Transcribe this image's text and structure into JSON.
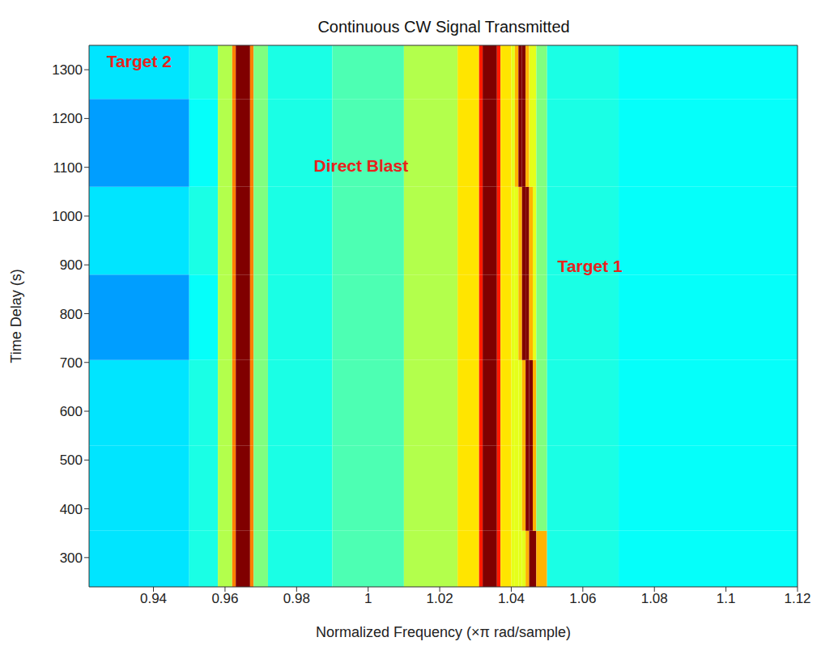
{
  "chart_data": {
    "type": "heatmap",
    "title": "Continuous CW Signal Transmitted",
    "x_label": "Normalized Frequency  (×π rad/sample)",
    "y_label": "Time Delay (s)",
    "xlim": [
      0.922,
      1.12
    ],
    "xticks": [
      0.94,
      0.96,
      0.98,
      1,
      1.02,
      1.04,
      1.06,
      1.08,
      1.1,
      1.12
    ],
    "ylim": [
      240,
      1350
    ],
    "yticks": [
      300,
      400,
      500,
      600,
      700,
      800,
      900,
      1000,
      1100,
      1200,
      1300
    ],
    "grid": false,
    "x_edges": [
      0.922,
      0.95,
      0.958,
      0.962,
      0.963,
      0.967,
      0.968,
      0.972,
      0.99,
      1.01,
      1.025,
      1.031,
      1.032,
      1.036,
      1.037,
      1.04,
      1.041,
      1.042,
      1.043,
      1.044,
      1.045,
      1.046,
      1.047,
      1.05,
      1.07,
      1.12
    ],
    "y_edges": [
      240,
      355,
      530,
      705,
      880,
      1060,
      1240,
      1350
    ],
    "clim": [
      0,
      1
    ],
    "cells": [
      [
        0.35,
        0.4,
        0.55,
        0.75,
        1,
        0.75,
        0.5,
        0.4,
        0.45,
        0.55,
        0.65,
        0.85,
        1,
        0.85,
        0.65,
        0.6,
        0.6,
        0.6,
        0.6,
        0.7,
        1,
        1,
        0.7,
        0.4,
        0.38
      ],
      [
        0.35,
        0.4,
        0.55,
        0.75,
        1,
        0.75,
        0.5,
        0.4,
        0.45,
        0.55,
        0.65,
        0.85,
        1,
        0.85,
        0.65,
        0.6,
        0.6,
        0.6,
        0.7,
        1,
        1,
        0.7,
        0.5,
        0.4,
        0.38
      ],
      [
        0.35,
        0.4,
        0.55,
        0.75,
        1,
        0.75,
        0.5,
        0.4,
        0.45,
        0.55,
        0.65,
        0.85,
        1,
        0.85,
        0.65,
        0.6,
        0.6,
        0.6,
        0.7,
        1,
        1,
        0.7,
        0.5,
        0.4,
        0.38
      ],
      [
        0.28,
        0.38,
        0.55,
        0.75,
        1,
        0.75,
        0.5,
        0.4,
        0.45,
        0.55,
        0.65,
        0.85,
        1,
        0.85,
        0.65,
        0.6,
        0.6,
        0.7,
        1,
        1,
        0.7,
        0.6,
        0.5,
        0.4,
        0.38
      ],
      [
        0.35,
        0.4,
        0.55,
        0.75,
        1,
        0.75,
        0.5,
        0.4,
        0.45,
        0.55,
        0.65,
        0.85,
        1,
        0.85,
        0.65,
        0.6,
        0.6,
        0.7,
        1,
        1,
        0.7,
        0.6,
        0.5,
        0.4,
        0.38
      ],
      [
        0.28,
        0.38,
        0.55,
        0.75,
        1,
        0.75,
        0.5,
        0.4,
        0.45,
        0.55,
        0.65,
        0.85,
        1,
        0.85,
        0.65,
        0.6,
        0.7,
        1,
        1,
        0.7,
        0.6,
        0.6,
        0.5,
        0.4,
        0.38
      ],
      [
        0.35,
        0.4,
        0.55,
        0.75,
        1,
        0.75,
        0.5,
        0.4,
        0.45,
        0.55,
        0.65,
        0.85,
        1,
        0.85,
        0.65,
        0.6,
        0.7,
        1,
        1,
        0.7,
        0.6,
        0.6,
        0.5,
        0.4,
        0.38
      ]
    ],
    "annotations": [
      {
        "text": "Target 2",
        "x": 0.936,
        "y": 1315,
        "color": "#e8221c"
      },
      {
        "text": "Direct Blast",
        "x": 0.998,
        "y": 1100,
        "color": "#e8221c"
      },
      {
        "text": "Target 1",
        "x": 1.062,
        "y": 895,
        "color": "#e8221c"
      }
    ]
  }
}
